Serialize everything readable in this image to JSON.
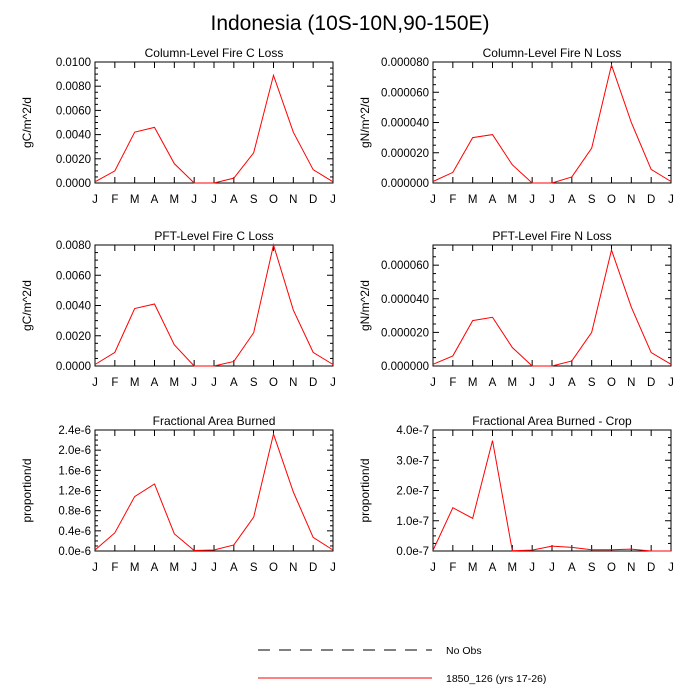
{
  "figure_title": "Indonesia (10S-10N,90-150E)",
  "legend": {
    "entries": [
      {
        "label": "No Obs",
        "style": "dashed",
        "color": "#000000"
      },
      {
        "label": "1850_126 (yrs 17-26)",
        "style": "solid",
        "color": "#ff0000"
      }
    ]
  },
  "chart_data": [
    {
      "type": "line",
      "title": "Column-Level Fire C Loss",
      "ylabel": "gC/m^2/d",
      "xlabel": "",
      "categories": [
        "J",
        "F",
        "M",
        "A",
        "M",
        "J",
        "J",
        "A",
        "S",
        "O",
        "N",
        "D",
        "J"
      ],
      "ylim": [
        0,
        0.01
      ],
      "yticks": [
        0,
        0.002,
        0.004,
        0.006,
        0.008,
        0.01
      ],
      "ytick_labels": [
        "0.0000",
        "0.0020",
        "0.0040",
        "0.0060",
        "0.0080",
        "0.0100"
      ],
      "series": [
        {
          "name": "1850_126 (yrs 17-26)",
          "color": "#ff0000",
          "values": [
            0.0001,
            0.001,
            0.0042,
            0.0046,
            0.0016,
            0.0,
            0.0,
            0.0004,
            0.0025,
            0.0089,
            0.0042,
            0.0011,
            0.0001
          ]
        }
      ]
    },
    {
      "type": "line",
      "title": "Column-Level Fire N Loss",
      "ylabel": "gN/m^2/d",
      "xlabel": "",
      "categories": [
        "J",
        "F",
        "M",
        "A",
        "M",
        "J",
        "J",
        "A",
        "S",
        "O",
        "N",
        "D",
        "J"
      ],
      "ylim": [
        0,
        8e-05
      ],
      "yticks": [
        0,
        2e-05,
        4e-05,
        6e-05,
        8e-05
      ],
      "ytick_labels": [
        "0.000000",
        "0.000020",
        "0.000040",
        "0.000060",
        "0.000080"
      ],
      "series": [
        {
          "name": "1850_126 (yrs 17-26)",
          "color": "#ff0000",
          "values": [
            1e-06,
            7e-06,
            3e-05,
            3.2e-05,
            1.2e-05,
            0.0,
            0.0,
            4e-06,
            2.3e-05,
            7.8e-05,
            4e-05,
            9e-06,
            1e-06
          ]
        }
      ]
    },
    {
      "type": "line",
      "title": "PFT-Level Fire C Loss",
      "ylabel": "gC/m^2/d",
      "xlabel": "",
      "categories": [
        "J",
        "F",
        "M",
        "A",
        "M",
        "J",
        "J",
        "A",
        "S",
        "O",
        "N",
        "D",
        "J"
      ],
      "ylim": [
        0,
        0.008
      ],
      "yticks": [
        0,
        0.002,
        0.004,
        0.006,
        0.008
      ],
      "ytick_labels": [
        "0.0000",
        "0.0020",
        "0.0040",
        "0.0060",
        "0.0080"
      ],
      "series": [
        {
          "name": "1850_126 (yrs 17-26)",
          "color": "#ff0000",
          "values": [
            0.0001,
            0.0009,
            0.0038,
            0.0041,
            0.0014,
            0.0,
            0.0,
            0.0003,
            0.0022,
            0.008,
            0.0037,
            0.0009,
            0.0001
          ]
        }
      ]
    },
    {
      "type": "line",
      "title": "PFT-Level Fire N Loss",
      "ylabel": "gN/m^2/d",
      "xlabel": "",
      "categories": [
        "J",
        "F",
        "M",
        "A",
        "M",
        "J",
        "J",
        "A",
        "S",
        "O",
        "N",
        "D",
        "J"
      ],
      "ylim": [
        0,
        7.2e-05
      ],
      "yticks": [
        0,
        2e-05,
        4e-05,
        6e-05
      ],
      "ytick_labels": [
        "0.000000",
        "0.000020",
        "0.000040",
        "0.000060"
      ],
      "series": [
        {
          "name": "1850_126 (yrs 17-26)",
          "color": "#ff0000",
          "values": [
            1e-06,
            6e-06,
            2.7e-05,
            2.9e-05,
            1.1e-05,
            0.0,
            0.0,
            3e-06,
            2e-05,
            6.9e-05,
            3.5e-05,
            8e-06,
            1e-06
          ]
        }
      ]
    },
    {
      "type": "line",
      "title": "Fractional Area Burned",
      "ylabel": "proportion/d",
      "xlabel": "",
      "categories": [
        "J",
        "F",
        "M",
        "A",
        "M",
        "J",
        "J",
        "A",
        "S",
        "O",
        "N",
        "D",
        "J"
      ],
      "ylim": [
        0,
        2.4e-06
      ],
      "yticks": [
        0,
        4e-07,
        8e-07,
        1.2e-06,
        1.6e-06,
        2e-06,
        2.4e-06
      ],
      "ytick_labels": [
        "0.0e-6",
        "0.4e-6",
        "0.8e-6",
        "1.2e-6",
        "1.6e-6",
        "2.0e-6",
        "2.4e-6"
      ],
      "series": [
        {
          "name": "1850_126 (yrs 17-26)",
          "color": "#ff0000",
          "values": [
            2e-08,
            3.6e-07,
            1.08e-06,
            1.33e-06,
            3.4e-07,
            1e-08,
            2e-08,
            1.2e-07,
            6.7e-07,
            2.32e-06,
            1.17e-06,
            2.7e-07,
            2e-08
          ]
        }
      ]
    },
    {
      "type": "line",
      "title": "Fractional Area Burned - Crop",
      "ylabel": "proportion/d",
      "xlabel": "",
      "categories": [
        "J",
        "F",
        "M",
        "A",
        "M",
        "J",
        "J",
        "A",
        "S",
        "O",
        "N",
        "D",
        "J"
      ],
      "ylim": [
        0,
        4e-07
      ],
      "yticks": [
        0,
        1e-07,
        2e-07,
        3e-07,
        4e-07
      ],
      "ytick_labels": [
        "0.0e-7",
        "1.0e-7",
        "2.0e-7",
        "3.0e-7",
        "4.0e-7"
      ],
      "series": [
        {
          "name": "1850_126 (yrs 17-26)",
          "color": "#ff0000",
          "values": [
            2e-09,
            1.43e-07,
            1.08e-07,
            3.65e-07,
            1e-09,
            3e-09,
            1.6e-08,
            1.2e-08,
            4e-09,
            4e-09,
            6e-09,
            0.0,
            0.0
          ]
        }
      ]
    }
  ]
}
